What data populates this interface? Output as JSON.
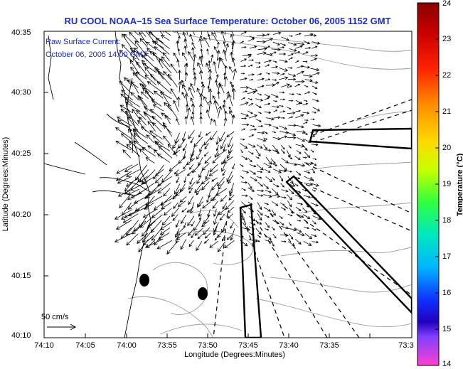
{
  "title": "RU COOL  NOAA–15  Sea Surface Temperature:  October 06, 2005 1152 GMT",
  "overlay": {
    "line1": "Raw Surface Current:",
    "line2": "October 06, 2005 14:00 GMT"
  },
  "axes": {
    "xlabel": "Longitude (Degrees:Minutes)",
    "ylabel": "Latitude (Degrees:Minutes)",
    "xticks": [
      "74:10",
      "74:05",
      "74:00",
      "73:55",
      "73:50",
      "73:45",
      "73:40",
      "73:35",
      "73:3"
    ],
    "yticks": [
      "40:35",
      "40:30",
      "40:25",
      "40:20",
      "40:15",
      "40:10"
    ]
  },
  "colorbar": {
    "label": "Temperature (°C)",
    "ticks": [
      "24",
      "23",
      "22",
      "21",
      "20",
      "19",
      "18",
      "17",
      "16",
      "15",
      "14"
    ],
    "min": 14,
    "max": 24
  },
  "scale": {
    "label": "50 cm/s"
  },
  "colors": {
    "title_text": "#1a2bd0",
    "land_outline": "#000000",
    "bathymetry": "#9a9a9a"
  }
}
